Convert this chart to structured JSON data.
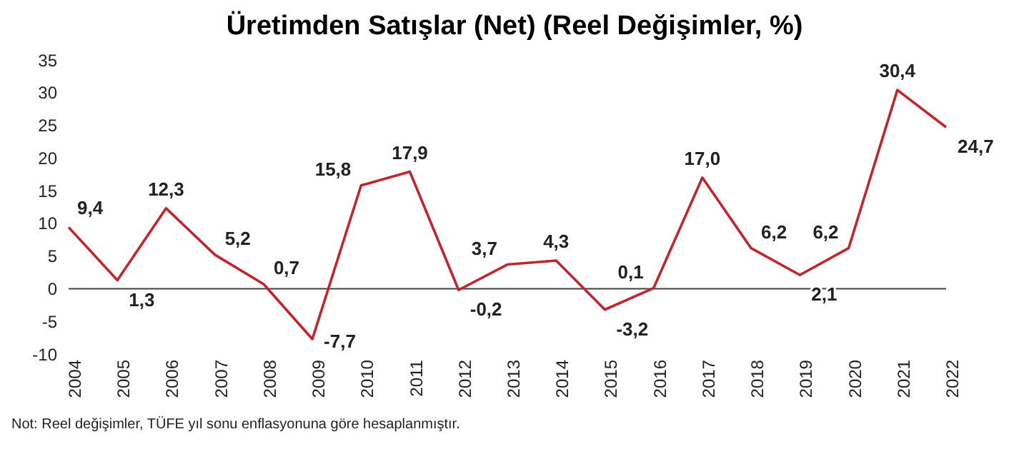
{
  "chart_data": {
    "type": "line",
    "title": "Üretimden Satışlar (Net) (Reel Değişimler, %)",
    "categories": [
      "2004",
      "2005",
      "2006",
      "2007",
      "2008",
      "2009",
      "2010",
      "2011",
      "2012",
      "2013",
      "2014",
      "2015",
      "2016",
      "2017",
      "2018",
      "2019",
      "2020",
      "2021",
      "2022"
    ],
    "series": [
      {
        "color": "#c0272d",
        "values": [
          9.4,
          1.3,
          12.3,
          5.2,
          0.7,
          -7.7,
          15.8,
          17.9,
          -0.2,
          3.7,
          4.3,
          -3.2,
          0.1,
          17.0,
          6.2,
          2.1,
          6.2,
          30.4,
          24.7
        ],
        "value_labels": [
          "9,4",
          "1,3",
          "12,3",
          "5,2",
          "0,7",
          "-7,7",
          "15,8",
          "17,9",
          "-0,2",
          "3,7",
          "4,3",
          "-3,2",
          "0,1",
          "17,0",
          "6,2",
          "2,1",
          "6,2",
          "30,4",
          "24,7"
        ]
      }
    ],
    "ylim": [
      -10,
      35
    ],
    "yticks": [
      -10,
      -5,
      0,
      5,
      10,
      15,
      20,
      25,
      30,
      35
    ],
    "grid": false,
    "legend": false,
    "marker": "none",
    "line_style": "solid",
    "ref_lines": [
      {
        "axis": "y",
        "value": 0,
        "color": "#404040"
      }
    ],
    "annotations": [
      "Not: Reel değişimler, TÜFE yıl sonu enflasyonuna göre hesaplanmıştır."
    ]
  }
}
